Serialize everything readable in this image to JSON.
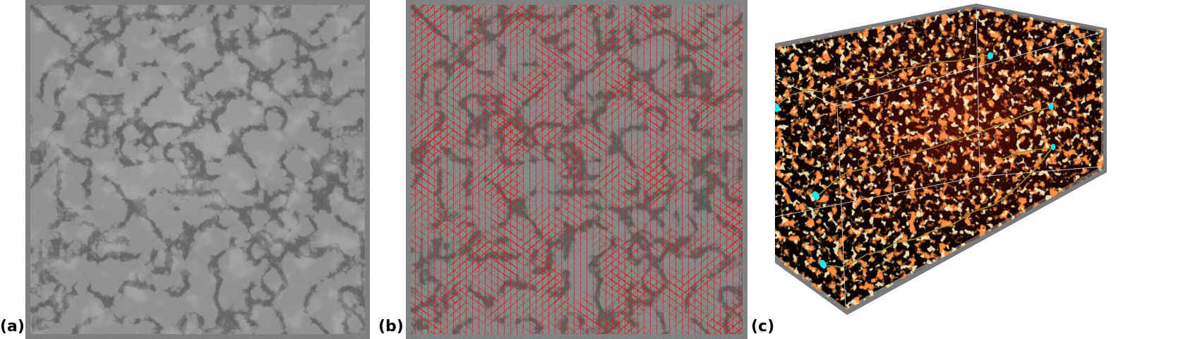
{
  "panels": [
    {
      "label": "(a)"
    },
    {
      "label": "(b)"
    },
    {
      "label": "(c)"
    }
  ],
  "colors": {
    "frame": "#777777",
    "density_gray": "#8c8c8c",
    "filament_dark": "#1e1e1e",
    "vector_red": "#e01414",
    "volume_black": "#050000",
    "volume_hot": "#ff4a10",
    "track_olive": "#a08a2a",
    "marker_cyan": "#19e6f0"
  }
}
